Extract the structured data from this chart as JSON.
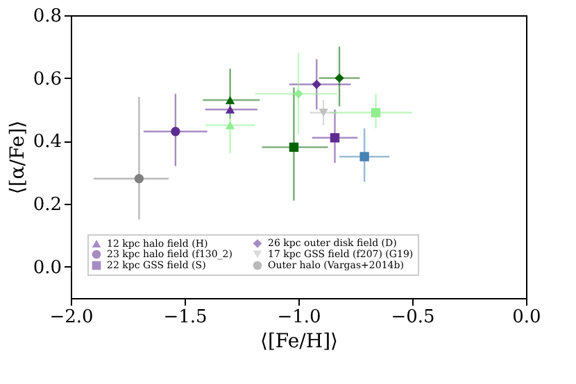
{
  "chart_data": {
    "type": "scatter",
    "xlabel": "⟨[Fe/H]⟩",
    "ylabel": "⟨[α/Fe]⟩",
    "xlim": [
      -2.0,
      0.0
    ],
    "ylim": [
      -0.1,
      0.8
    ],
    "xticks": [
      {
        "value": -2.0,
        "label": "−2.0"
      },
      -1.5,
      {
        "value": -1.0,
        "label": "−1.0"
      },
      -0.5,
      {
        "value": 0.0,
        "label": "0.0"
      }
    ],
    "yticks": [
      {
        "value": 0.0,
        "label": "0.0"
      },
      0.2,
      0.4,
      0.6,
      0.8
    ],
    "grid": false,
    "legend": "bottom",
    "series": [
      {
        "name": "12 kpc halo field (H)",
        "color": "#5e2d91",
        "marker": "triangle",
        "x": [
          -1.3
        ],
        "values": [
          0.5
        ],
        "xerrors": [
          [
            -1.41,
            -1.18
          ]
        ]
      },
      {
        "name": "23 kpc halo field (f130_2)",
        "color": "#5e2d91",
        "marker": "circle",
        "x": [
          -1.54
        ],
        "values": [
          0.43
        ],
        "xerrors": [
          [
            -1.68,
            -1.4
          ]
        ],
        "errors": [
          [
            0.32,
            0.55
          ]
        ]
      },
      {
        "name": "22 kpc GSS field (S)",
        "color": "#5e2d91",
        "marker": "square",
        "x": [
          -0.84
        ],
        "values": [
          0.41
        ],
        "xerrors": [
          [
            -0.94,
            -0.74
          ]
        ],
        "errors": [
          [
            0.33,
            0.5
          ]
        ]
      },
      {
        "name": "26 kpc outer disk field (D)",
        "color": "#5e2d91",
        "marker": "diamond",
        "x": [
          -0.92
        ],
        "values": [
          0.58
        ],
        "xerrors": [
          [
            -1.04,
            -0.77
          ]
        ],
        "errors": [
          [
            0.5,
            0.66
          ]
        ]
      },
      {
        "name": "17 kpc GSS field (f207) (G19)",
        "color": "#c0c0c0",
        "marker": "triangle-down",
        "x": [
          -0.89
        ],
        "values": [
          0.49
        ],
        "xerrors": [
          [
            -0.95,
            -0.83
          ]
        ],
        "errors": [
          [
            0.45,
            0.53
          ]
        ]
      },
      {
        "name": "Outer halo (Vargas+2014b)",
        "color": "#808080",
        "marker": "circle",
        "x": [
          -1.7
        ],
        "values": [
          0.28
        ],
        "xerrors": [
          [
            -1.9,
            -1.57
          ]
        ],
        "errors": [
          [
            0.15,
            0.54
          ]
        ]
      },
      {
        "color": "#006400",
        "marker": "triangle",
        "x": [
          -1.3
        ],
        "values": [
          0.53
        ],
        "xerrors": [
          [
            -1.42,
            -1.17
          ]
        ],
        "errors": [
          [
            0.47,
            0.63
          ]
        ]
      },
      {
        "color": "#006400",
        "marker": "square",
        "x": [
          -1.02
        ],
        "values": [
          0.38
        ],
        "xerrors": [
          [
            -1.16,
            -0.87
          ]
        ],
        "errors": [
          [
            0.21,
            0.57
          ]
        ]
      },
      {
        "color": "#006400",
        "marker": "diamond",
        "x": [
          -0.82
        ],
        "values": [
          0.6
        ],
        "xerrors": [
          [
            -0.91,
            -0.73
          ]
        ],
        "errors": [
          [
            0.51,
            0.7
          ]
        ]
      },
      {
        "color": "#90ee90",
        "marker": "triangle",
        "x": [
          -1.3
        ],
        "values": [
          0.45
        ],
        "xerrors": [
          [
            -1.41,
            -1.19
          ]
        ],
        "errors": [
          [
            0.36,
            0.5
          ]
        ]
      },
      {
        "color": "#90ee90",
        "marker": "diamond",
        "x": [
          -1.0
        ],
        "values": [
          0.55
        ],
        "xerrors": [
          [
            -1.19,
            -0.83
          ]
        ],
        "errors": [
          [
            0.42,
            0.68
          ]
        ]
      },
      {
        "color": "#90ee90",
        "marker": "square",
        "x": [
          -0.66
        ],
        "values": [
          0.49
        ],
        "xerrors": [
          [
            -0.86,
            -0.5
          ]
        ],
        "errors": [
          [
            0.44,
            0.55
          ]
        ]
      },
      {
        "color": "#4682b4",
        "marker": "square",
        "x": [
          -0.71
        ],
        "values": [
          0.35
        ],
        "xerrors": [
          [
            -0.82,
            -0.6
          ]
        ],
        "errors": [
          [
            0.27,
            0.44
          ]
        ]
      }
    ]
  }
}
